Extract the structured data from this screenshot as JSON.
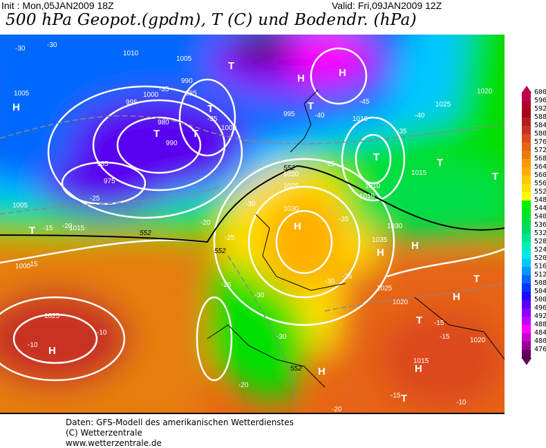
{
  "header": {
    "init": "Init : Mon,05JAN2009 18Z",
    "valid": "Valid: Fri,09JAN2009 12Z",
    "title": "500 hPa Geopot.(gpdm), T (C) und Bodendr. (hPa)"
  },
  "legend": {
    "levels": [
      "600",
      "596",
      "592",
      "588",
      "584",
      "580",
      "576",
      "572",
      "568",
      "564",
      "560",
      "556",
      "552",
      "548",
      "544",
      "540",
      "536",
      "532",
      "528",
      "524",
      "520",
      "516",
      "512",
      "508",
      "504",
      "500",
      "496",
      "492",
      "488",
      "484",
      "480",
      "476"
    ],
    "colors": [
      "#c0004f",
      "#b0002a",
      "#a80018",
      "#b41e1e",
      "#c83222",
      "#dc4a1e",
      "#e66414",
      "#e67e0c",
      "#ff9600",
      "#ffae00",
      "#ffc800",
      "#ffe000",
      "#ffff00",
      "#00f000",
      "#00e61e",
      "#00de46",
      "#00dc64",
      "#00e496",
      "#00f0b4",
      "#00e8e8",
      "#00c8ff",
      "#0098ff",
      "#0068ff",
      "#0036ff",
      "#2008ff",
      "#5a00f0",
      "#8c00ff",
      "#c000ff",
      "#ff00ff",
      "#c800c8",
      "#960096",
      "#600060"
    ]
  },
  "map": {
    "labels": [
      "1010",
      "1005",
      "990",
      "985",
      "1000",
      "995",
      "980",
      "975",
      "985",
      "990",
      "1000",
      "1030",
      "1025",
      "1020",
      "1015",
      "1010",
      "1005",
      "1000",
      "995",
      "1030",
      "1035",
      "1025",
      "1020",
      "1015",
      "1010",
      "1005",
      "1015",
      "1025",
      "1020",
      "1015",
      "1025",
      "1020",
      "-30",
      "-30",
      "-35",
      "-35",
      "-30",
      "-25",
      "-25",
      "-20",
      "-15",
      "-15",
      "-10",
      "-10",
      "-20",
      "-25",
      "-30",
      "-30",
      "-35",
      "-40",
      "-40",
      "-45",
      "-35",
      "-25",
      "-20",
      "-15",
      "-15",
      "-15",
      "-10",
      "-25",
      "-30",
      "-20",
      "552",
      "552",
      "552",
      "552"
    ],
    "centers": [
      "H",
      "H",
      "H",
      "H",
      "H",
      "H",
      "H",
      "H",
      "H",
      "H",
      "T",
      "T",
      "T",
      "T",
      "T",
      "T",
      "T",
      "T",
      "T",
      "T",
      "T",
      "T"
    ]
  },
  "footer": {
    "line1": "Daten: GFS-Modell des amerikanischen Wetterdienstes",
    "line2": "(C) Wetterzentrale",
    "line3": "www.wetterzentrale.de"
  }
}
